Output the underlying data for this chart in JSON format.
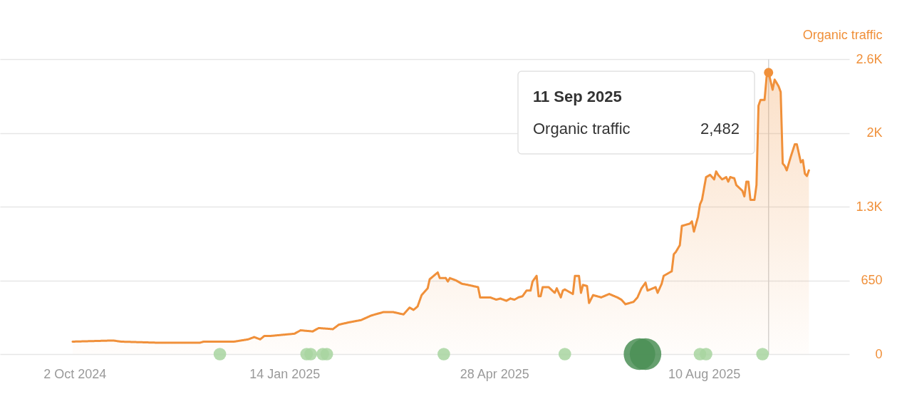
{
  "chart_data": {
    "type": "area",
    "ylabel": "Organic traffic",
    "series": [
      {
        "color": "#f0903a",
        "x": [
          "2024-10-01",
          "2024-10-21",
          "2024-10-25",
          "2024-11-13",
          "2024-12-03",
          "2024-12-05",
          "2024-12-20",
          "2024-12-27",
          "2024-12-30",
          "2025-01-02",
          "2025-01-04",
          "2025-01-07",
          "2025-01-19",
          "2025-01-22",
          "2025-01-28",
          "2025-01-31",
          "2025-02-07",
          "2025-02-10",
          "2025-02-15",
          "2025-02-21",
          "2025-02-26",
          "2025-03-04",
          "2025-03-09",
          "2025-03-14",
          "2025-03-17",
          "2025-03-19",
          "2025-03-21",
          "2025-03-23",
          "2025-03-26",
          "2025-03-27",
          "2025-03-29",
          "2025-03-31",
          "2025-04-01",
          "2025-04-04",
          "2025-04-05",
          "2025-04-06",
          "2025-04-09",
          "2025-04-12",
          "2025-04-15",
          "2025-04-20",
          "2025-04-21",
          "2025-04-26",
          "2025-04-29",
          "2025-05-01",
          "2025-05-04",
          "2025-05-06",
          "2025-05-08",
          "2025-05-10",
          "2025-05-12",
          "2025-05-14",
          "2025-05-16",
          "2025-05-17",
          "2025-05-19",
          "2025-05-20",
          "2025-05-21",
          "2025-05-22",
          "2025-05-25",
          "2025-05-28",
          "2025-05-29",
          "2025-05-31",
          "2025-06-01",
          "2025-06-02",
          "2025-06-05",
          "2025-06-06",
          "2025-06-07",
          "2025-06-09",
          "2025-06-10",
          "2025-06-11",
          "2025-06-13",
          "2025-06-14",
          "2025-06-16",
          "2025-06-20",
          "2025-06-24",
          "2025-06-28",
          "2025-06-30",
          "2025-07-02",
          "2025-07-06",
          "2025-07-08",
          "2025-07-10",
          "2025-07-12",
          "2025-07-13",
          "2025-07-17",
          "2025-07-18",
          "2025-07-20",
          "2025-07-21",
          "2025-07-25",
          "2025-07-26",
          "2025-07-27",
          "2025-07-29",
          "2025-07-30",
          "2025-08-03",
          "2025-08-04",
          "2025-08-05",
          "2025-08-07",
          "2025-08-08",
          "2025-08-09",
          "2025-08-11",
          "2025-08-13",
          "2025-08-15",
          "2025-08-16",
          "2025-08-17",
          "2025-08-19",
          "2025-08-21",
          "2025-08-22",
          "2025-08-23",
          "2025-08-25",
          "2025-08-26",
          "2025-08-29",
          "2025-08-30",
          "2025-08-31",
          "2025-09-01",
          "2025-09-02",
          "2025-09-04",
          "2025-09-05",
          "2025-09-06",
          "2025-09-07",
          "2025-09-09",
          "2025-09-10",
          "2025-09-11",
          "2025-09-13",
          "2025-09-14",
          "2025-09-16",
          "2025-09-17",
          "2025-09-18",
          "2025-09-19",
          "2025-09-20",
          "2025-09-22",
          "2025-09-24",
          "2025-09-25",
          "2025-09-27",
          "2025-09-28",
          "2025-09-29",
          "2025-09-30",
          "2025-10-01"
        ],
        "values": [
          110,
          120,
          110,
          100,
          100,
          110,
          110,
          130,
          150,
          130,
          160,
          160,
          180,
          210,
          200,
          230,
          220,
          260,
          280,
          300,
          340,
          370,
          370,
          350,
          410,
          390,
          420,
          520,
          580,
          660,
          690,
          720,
          670,
          670,
          640,
          670,
          650,
          620,
          610,
          590,
          500,
          500,
          480,
          490,
          470,
          490,
          480,
          500,
          510,
          560,
          560,
          640,
          690,
          510,
          510,
          590,
          590,
          540,
          580,
          500,
          560,
          570,
          540,
          530,
          690,
          690,
          540,
          610,
          600,
          450,
          520,
          500,
          530,
          500,
          480,
          440,
          460,
          500,
          580,
          630,
          560,
          590,
          540,
          620,
          690,
          730,
          880,
          900,
          960,
          1130,
          1150,
          1170,
          1080,
          1210,
          1320,
          1360,
          1560,
          1580,
          1540,
          1610,
          1580,
          1540,
          1560,
          1520,
          1560,
          1550,
          1490,
          1440,
          1390,
          1520,
          1520,
          1360,
          1360,
          1490,
          2190,
          2240,
          2240,
          2440,
          2482,
          2330,
          2420,
          2360,
          2310,
          1680,
          1660,
          1620,
          1740,
          1850,
          1850,
          1690,
          1710,
          1590,
          1570,
          1620
        ]
      },
      {
        "type": "bubble",
        "colors": [
          "#a8d5a0",
          "#a8d5a0",
          "#a8d5a0",
          "#a8d5a0",
          "#a8d5a0",
          "#a8d5a0",
          "#a8d5a0",
          "#4b8f56",
          "#4b8f56",
          "#a8d5a0",
          "#a8d5a0",
          "#a8d5a0"
        ],
        "x": [
          "2024-12-13",
          "2025-01-25",
          "2025-01-27",
          "2025-02-02",
          "2025-02-04",
          "2025-04-03",
          "2025-06-02",
          "2025-07-09",
          "2025-07-12",
          "2025-08-08",
          "2025-08-11",
          "2025-09-08"
        ],
        "values": [
          0,
          0,
          0,
          0,
          0,
          0,
          0,
          0,
          0,
          0,
          0,
          0
        ],
        "sizes": [
          0.16,
          0.16,
          0.16,
          0.16,
          0.16,
          0.16,
          0.16,
          1,
          1,
          0.16,
          0.16,
          0.16
        ]
      },
      {
        "type": "scatter",
        "color": "#f0903a",
        "x": [
          "2025-09-11"
        ],
        "values": [
          2482
        ]
      }
    ],
    "xlim": [
      "2024-08-26",
      "2025-10-21"
    ],
    "xticks": [
      {
        "value": "2024-10-02",
        "label": "2 Oct 2024"
      },
      {
        "value": "2025-01-14",
        "label": "14 Jan 2025"
      },
      {
        "value": "2025-04-28",
        "label": "28 Apr 2025"
      },
      {
        "value": "2025-08-10",
        "label": "10 Aug 2025"
      }
    ],
    "ylim": [
      0,
      2600
    ],
    "yticks": [
      0,
      650,
      {
        "value": 1300,
        "label": "1.3K"
      },
      {
        "value": 1950,
        "label": "2K"
      },
      {
        "value": 2600,
        "label": "2.6K"
      }
    ],
    "grid": "y",
    "ref_lines": [
      {
        "axis": "x",
        "value": "2025-09-11",
        "color": "#d4d4d4"
      }
    ],
    "annotations": [
      "11 Sep 2025",
      "Organic traffic",
      "2,482"
    ]
  }
}
